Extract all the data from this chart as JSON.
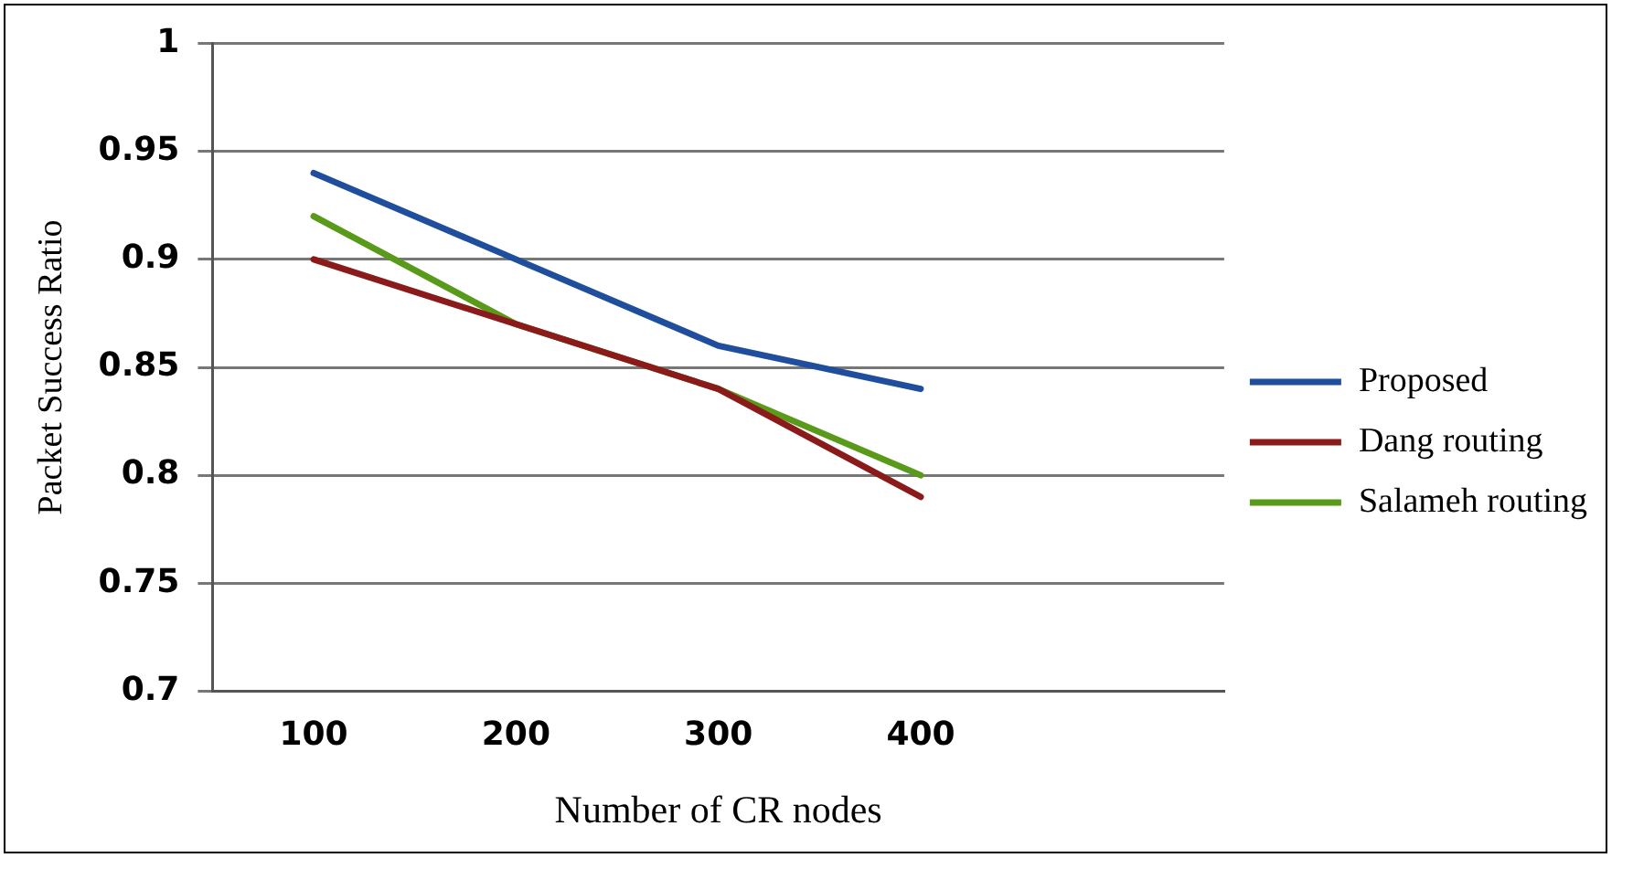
{
  "chart_data": {
    "type": "line",
    "xlabel": "Number of CR nodes",
    "ylabel": "Packet Success Ratio",
    "categories": [
      "100",
      "200",
      "300",
      "400",
      null
    ],
    "series": [
      {
        "name": "Proposed",
        "color": "#1f4e9c",
        "values": [
          0.94,
          0.9,
          0.86,
          0.84,
          null
        ]
      },
      {
        "name": "Dang routing",
        "color": "#8b1a1a",
        "values": [
          0.9,
          0.87,
          0.84,
          0.79,
          null
        ]
      },
      {
        "name": "Salameh routing",
        "color": "#5a9a1a",
        "values": [
          0.92,
          0.87,
          0.84,
          0.8,
          null
        ]
      }
    ],
    "ylim": [
      0.7,
      1
    ],
    "yticks": [
      0.7,
      0.75,
      0.8,
      0.85,
      0.9,
      0.95,
      1
    ],
    "grid": "y",
    "legend": "right",
    "marker": "none",
    "line_style": "solid"
  }
}
